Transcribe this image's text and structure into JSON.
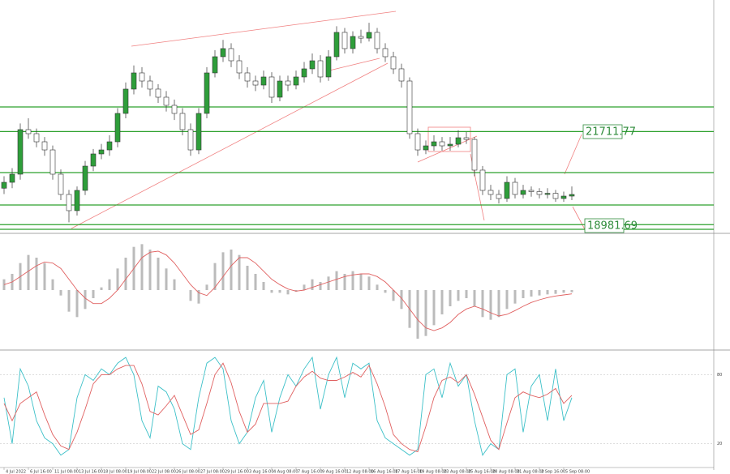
{
  "chart_data": {
    "type": "candlestick",
    "categories": [
      "4 Jul 2022",
      null,
      null,
      "6 Jul 16:00",
      null,
      null,
      "11 Jul 08:00",
      null,
      null,
      "13 Jul 16:00",
      null,
      null,
      "18 Jul 08:00",
      null,
      null,
      "19 Jul 08:00",
      null,
      null,
      "22 Jul 08:00",
      null,
      null,
      "26 Jul 08:00",
      null,
      null,
      "27 Jul 08:00",
      null,
      null,
      "29 Jul 16:00",
      null,
      null,
      "3 Aug 16:00",
      null,
      null,
      "4 Aug 08:00",
      null,
      null,
      "7 Aug 16:00",
      null,
      null,
      "9 Aug 16:00",
      null,
      null,
      "12 Aug 08:00",
      null,
      null,
      "16 Aug 16:00",
      null,
      null,
      "17 Aug 16:00",
      null,
      null,
      "19 Aug 08:00",
      null,
      null,
      "23 Aug 08:00",
      null,
      null,
      "25 Aug 16:00",
      null,
      null,
      "28 Aug 08:00",
      null,
      null,
      "31 Aug 08:00",
      null,
      null,
      "2 Sep 16:00",
      null,
      null,
      "5 Sep 08:00",
      null
    ],
    "open": [
      20050,
      20223,
      20461,
      21768,
      21649,
      21411,
      21173,
      20461,
      19867,
      19392,
      19986,
      20698,
      21055,
      21173,
      21411,
      22243,
      22956,
      23431,
      23193,
      22956,
      22718,
      22480,
      22243,
      21768,
      21173,
      22243,
      23431,
      23906,
      24144,
      23787,
      23431,
      23193,
      23074,
      23312,
      22718,
      23193,
      23074,
      23312,
      23550,
      23787,
      23312,
      23906,
      24619,
      24144,
      24500,
      24450,
      24619,
      24144,
      23906,
      23550,
      23193,
      21649,
      21173,
      21292,
      21411,
      21292,
      21340,
      21530,
      21480,
      20580,
      19986,
      19867,
      19748,
      20223,
      19867,
      19986,
      19950,
      19867,
      19900,
      19748,
      19819
    ],
    "high": [
      20400,
      20640,
      21950,
      22100,
      21800,
      21550,
      21300,
      20600,
      20000,
      20100,
      20850,
      21200,
      21350,
      21600,
      22400,
      23150,
      23650,
      23600,
      23350,
      23100,
      22900,
      22650,
      22400,
      21950,
      22400,
      23600,
      24100,
      24400,
      24300,
      23950,
      23600,
      23350,
      23500,
      23450,
      23350,
      23350,
      23500,
      23750,
      24000,
      23950,
      24100,
      24800,
      24750,
      24650,
      24700,
      24900,
      24750,
      24300,
      24050,
      23700,
      23300,
      21800,
      21450,
      21600,
      21550,
      21550,
      21750,
      21700,
      21550,
      20700,
      20150,
      20000,
      20400,
      20350,
      20150,
      20100,
      20050,
      20050,
      20000,
      19950,
      20100
    ],
    "low": [
      19880,
      20050,
      20300,
      21500,
      21250,
      21000,
      20300,
      19700,
      19050,
      19250,
      19850,
      20550,
      20900,
      21000,
      21250,
      22100,
      22800,
      23000,
      22750,
      22550,
      22300,
      22050,
      21600,
      21000,
      21050,
      22100,
      23300,
      23750,
      23600,
      23250,
      23000,
      22900,
      22950,
      22550,
      22600,
      22900,
      22950,
      23150,
      23400,
      23150,
      23200,
      23800,
      24000,
      24000,
      24300,
      24350,
      24000,
      23750,
      23400,
      23000,
      21500,
      21000,
      21050,
      21150,
      21150,
      21150,
      21250,
      21350,
      20400,
      19850,
      19700,
      19600,
      19650,
      19750,
      19750,
      19800,
      19750,
      19750,
      19650,
      19650,
      19700
    ],
    "close": [
      20223,
      20461,
      21768,
      21649,
      21411,
      21173,
      20461,
      19867,
      19392,
      19986,
      20698,
      21055,
      21173,
      21411,
      22243,
      22956,
      23431,
      23193,
      22956,
      22718,
      22480,
      22243,
      21768,
      21173,
      22243,
      23431,
      23906,
      24144,
      23787,
      23431,
      23193,
      23074,
      23312,
      22718,
      23193,
      23074,
      23312,
      23550,
      23787,
      23312,
      23906,
      24619,
      24144,
      24500,
      24450,
      24619,
      24144,
      23906,
      23550,
      23193,
      21649,
      21173,
      21292,
      21411,
      21292,
      21340,
      21530,
      21480,
      20580,
      19986,
      19867,
      19748,
      20223,
      19867,
      19986,
      19950,
      19867,
      19900,
      19748,
      19819,
      19867
    ],
    "up_color": "#2e9e3a",
    "down_color": "#ffffff",
    "ylim": [
      18750,
      25450
    ],
    "levels": [
      22433,
      21711.77,
      20508,
      19558,
      18981.69,
      18845
    ],
    "level_color": "#2ca02c",
    "macd": {
      "ylim": [
        -1050,
        990
      ],
      "hist_color": "#bbbbbb",
      "signal_color": "#e06060",
      "histogram": [
        200,
        300,
        500,
        650,
        600,
        500,
        200,
        -100,
        -400,
        -500,
        -350,
        -150,
        50,
        200,
        400,
        600,
        800,
        850,
        750,
        600,
        400,
        200,
        0,
        -200,
        -250,
        100,
        500,
        700,
        750,
        650,
        450,
        300,
        150,
        -50,
        -50,
        -80,
        -30,
        100,
        200,
        150,
        250,
        350,
        300,
        350,
        300,
        250,
        100,
        -50,
        -200,
        -350,
        -700,
        -900,
        -850,
        -650,
        -450,
        -300,
        -200,
        -150,
        -300,
        -500,
        -550,
        -500,
        -350,
        -250,
        -150,
        -120,
        -100,
        -80,
        -70,
        -50,
        -40
      ],
      "signal": [
        100,
        150,
        250,
        350,
        450,
        520,
        500,
        400,
        200,
        0,
        -150,
        -250,
        -250,
        -150,
        0,
        200,
        400,
        600,
        700,
        720,
        650,
        500,
        300,
        100,
        -50,
        -100,
        50,
        250,
        450,
        600,
        600,
        500,
        350,
        200,
        100,
        20,
        -20,
        0,
        50,
        100,
        150,
        200,
        250,
        280,
        300,
        300,
        250,
        150,
        0,
        -150,
        -350,
        -550,
        -700,
        -750,
        -700,
        -600,
        -450,
        -350,
        -300,
        -350,
        -420,
        -480,
        -450,
        -380,
        -300,
        -230,
        -180,
        -140,
        -110,
        -90,
        -70
      ]
    },
    "stochastic": {
      "ylim": [
        0,
        100
      ],
      "yticks": [
        20,
        80
      ],
      "k_color": "#3cc0c8",
      "d_color": "#e06060",
      "k": [
        60,
        20,
        85,
        70,
        40,
        25,
        20,
        10,
        15,
        60,
        80,
        75,
        85,
        80,
        90,
        95,
        80,
        40,
        25,
        70,
        65,
        50,
        20,
        15,
        60,
        90,
        95,
        85,
        40,
        20,
        30,
        60,
        75,
        30,
        60,
        80,
        70,
        85,
        95,
        50,
        80,
        95,
        60,
        90,
        85,
        90,
        40,
        25,
        20,
        15,
        10,
        15,
        80,
        85,
        60,
        90,
        70,
        80,
        40,
        10,
        20,
        15,
        80,
        85,
        30,
        70,
        80,
        40,
        85,
        40,
        60
      ],
      "d": [
        55,
        40,
        55,
        60,
        65,
        45,
        28,
        18,
        15,
        30,
        50,
        72,
        80,
        80,
        85,
        88,
        88,
        72,
        48,
        45,
        53,
        62,
        45,
        28,
        32,
        55,
        80,
        90,
        73,
        48,
        30,
        37,
        55,
        55,
        55,
        57,
        70,
        78,
        83,
        77,
        75,
        75,
        78,
        82,
        78,
        88,
        72,
        52,
        28,
        20,
        15,
        13,
        35,
        60,
        75,
        78,
        73,
        80,
        63,
        43,
        23,
        15,
        38,
        60,
        65,
        62,
        60,
        63,
        68,
        55,
        62
      ]
    }
  }
}
